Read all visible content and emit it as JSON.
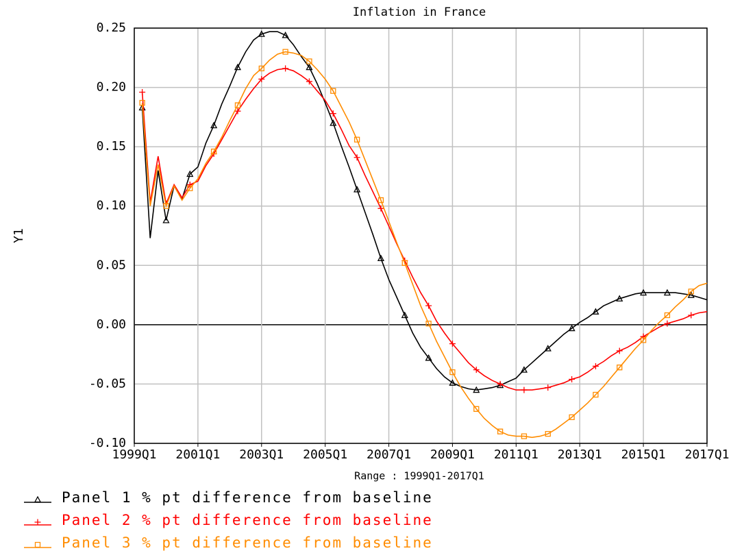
{
  "chart_data": {
    "type": "line",
    "title": "Inflation in France",
    "y_label": "Y1",
    "x_label": "Range : 1999Q1-2017Q1",
    "categories": [
      "1999Q1",
      null,
      null,
      null,
      null,
      null,
      null,
      null,
      "2001Q1",
      null,
      null,
      null,
      null,
      null,
      null,
      null,
      "2003Q1",
      null,
      null,
      null,
      null,
      null,
      null,
      null,
      "2005Q1",
      null,
      null,
      null,
      null,
      null,
      null,
      null,
      "2007Q1",
      null,
      null,
      null,
      null,
      null,
      null,
      null,
      "2009Q1",
      null,
      null,
      null,
      null,
      null,
      null,
      null,
      "2011Q1",
      null,
      null,
      null,
      null,
      null,
      null,
      null,
      "2013Q1",
      null,
      null,
      null,
      null,
      null,
      null,
      null,
      "2015Q1",
      null,
      null,
      null,
      null,
      null,
      null,
      null,
      "2017Q1"
    ],
    "series": [
      {
        "name": "Panel 1 % pt difference from baseline",
        "color": "#000000",
        "marker": "triangle",
        "values": [
          null,
          0.183,
          0.073,
          0.13,
          0.088,
          0.117,
          0.106,
          0.127,
          0.133,
          0.153,
          0.168,
          0.186,
          0.201,
          0.217,
          0.23,
          0.24,
          0.245,
          0.247,
          0.247,
          0.244,
          0.236,
          0.226,
          0.217,
          0.203,
          0.187,
          0.17,
          0.151,
          0.133,
          0.114,
          0.095,
          0.076,
          0.056,
          0.038,
          0.023,
          0.008,
          -0.007,
          -0.019,
          -0.028,
          -0.037,
          -0.044,
          -0.049,
          -0.052,
          -0.054,
          -0.055,
          -0.054,
          -0.053,
          -0.051,
          -0.048,
          -0.045,
          -0.038,
          -0.032,
          -0.026,
          -0.02,
          -0.014,
          -0.008,
          -0.003,
          0.002,
          0.006,
          0.011,
          0.016,
          0.019,
          0.022,
          0.024,
          0.026,
          0.027,
          0.027,
          0.027,
          0.027,
          0.027,
          0.026,
          0.025,
          0.023,
          0.021
        ]
      },
      {
        "name": "Panel 2 % pt difference from baseline",
        "color": "#ff0000",
        "marker": "plus",
        "values": [
          null,
          0.196,
          0.103,
          0.142,
          0.102,
          0.118,
          0.107,
          0.118,
          0.121,
          0.134,
          0.144,
          0.156,
          0.168,
          0.18,
          0.19,
          0.199,
          0.207,
          0.212,
          0.215,
          0.216,
          0.214,
          0.21,
          0.205,
          0.197,
          0.189,
          0.178,
          0.165,
          0.151,
          0.141,
          0.126,
          0.112,
          0.098,
          0.083,
          0.068,
          0.054,
          0.04,
          0.027,
          0.016,
          0.003,
          -0.007,
          -0.016,
          -0.024,
          -0.032,
          -0.038,
          -0.043,
          -0.047,
          -0.05,
          -0.053,
          -0.055,
          -0.055,
          -0.055,
          -0.054,
          -0.053,
          -0.051,
          -0.049,
          -0.046,
          -0.044,
          -0.04,
          -0.035,
          -0.031,
          -0.026,
          -0.022,
          -0.019,
          -0.015,
          -0.01,
          -0.006,
          -0.002,
          0.001,
          0.003,
          0.005,
          0.008,
          0.01,
          0.011
        ]
      },
      {
        "name": "Panel 3 % pt difference from baseline",
        "color": "#ff8c00",
        "marker": "square",
        "values": [
          null,
          0.187,
          0.1,
          0.135,
          0.1,
          0.117,
          0.105,
          0.115,
          0.123,
          0.136,
          0.146,
          0.158,
          0.172,
          0.185,
          0.199,
          0.21,
          0.216,
          0.223,
          0.228,
          0.23,
          0.229,
          0.227,
          0.222,
          0.215,
          0.207,
          0.197,
          0.184,
          0.171,
          0.156,
          0.139,
          0.122,
          0.105,
          0.087,
          0.069,
          0.052,
          0.034,
          0.016,
          0.001,
          -0.014,
          -0.027,
          -0.04,
          -0.052,
          -0.062,
          -0.071,
          -0.079,
          -0.085,
          -0.09,
          -0.093,
          -0.094,
          -0.094,
          -0.095,
          -0.094,
          -0.092,
          -0.088,
          -0.083,
          -0.078,
          -0.072,
          -0.066,
          -0.059,
          -0.052,
          -0.044,
          -0.036,
          -0.028,
          -0.02,
          -0.013,
          -0.005,
          0.002,
          0.008,
          0.015,
          0.021,
          0.028,
          0.033,
          0.035
        ]
      }
    ],
    "ylim": [
      -0.1,
      0.25
    ],
    "yticks": [
      {
        "value": -0.1,
        "label": "-0.10"
      },
      -0.05,
      {
        "value": 0,
        "label": "0.00"
      },
      0.05,
      {
        "value": 0.1,
        "label": "0.10"
      },
      0.15,
      {
        "value": 0.2,
        "label": "0.20"
      },
      0.25
    ],
    "grid": true
  }
}
